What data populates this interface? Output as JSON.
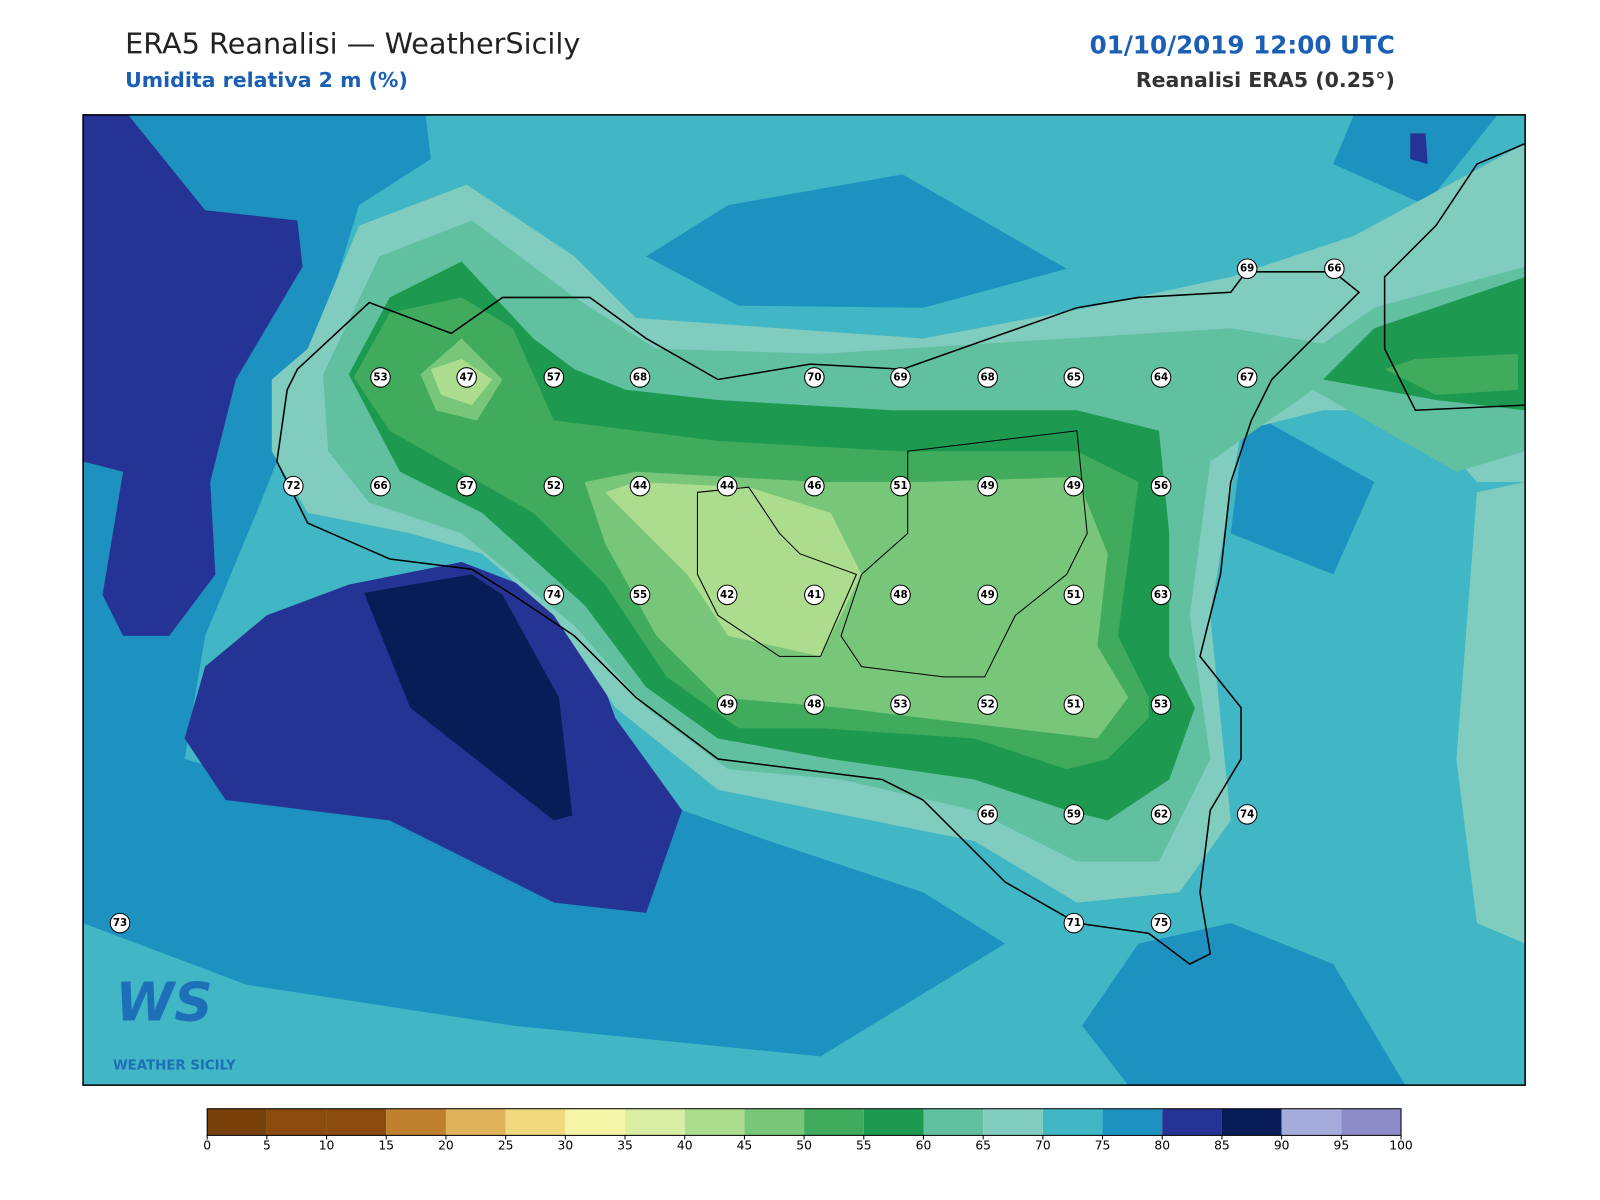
{
  "header": {
    "title": "ERA5 Reanalisi — WeatherSicily",
    "subtitle": "Umidita relativa 2 m (%)",
    "date": "01/10/2019 12:00 UTC",
    "source": "Reanalisi ERA5 (0.25°)"
  },
  "stations": [
    53,
    47,
    57,
    68,
    70,
    69,
    68,
    65,
    64,
    67,
    69,
    66,
    72,
    66,
    57,
    52,
    44,
    44,
    46,
    51,
    49,
    49,
    56,
    74,
    55,
    42,
    41,
    48,
    49,
    51,
    63,
    49,
    48,
    53,
    52,
    51,
    53,
    66,
    59,
    62,
    74,
    73,
    71,
    75
  ],
  "colorbar": {
    "ticks": [
      0,
      5,
      10,
      15,
      20,
      25,
      30,
      35,
      40,
      45,
      50,
      55,
      60,
      65,
      70,
      75,
      80,
      85,
      90,
      95,
      100
    ],
    "colors": [
      "#784009",
      "#8b4a0e",
      "#8b4a0e",
      "#bf812d",
      "#dfb25c",
      "#f0d87e",
      "#f5f5a8",
      "#d9eea3",
      "#acdc8e",
      "#78c679",
      "#41ab5d",
      "#1d9a50",
      "#60c0a0",
      "#80ccbe",
      "#41b6c4",
      "#1d91c0",
      "#253494",
      "#081d58",
      "#a5acdc",
      "#8d8ac8"
    ]
  },
  "logo": {
    "mark": "WS",
    "text": "WEATHER SICILY"
  }
}
